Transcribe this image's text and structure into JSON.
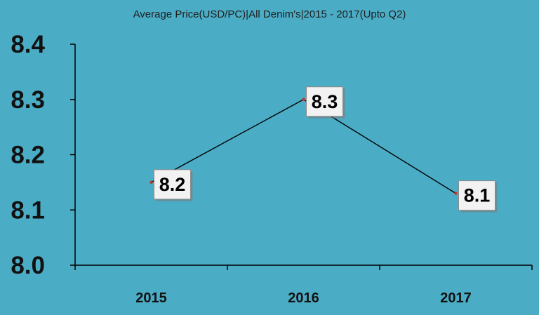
{
  "chart_data": {
    "type": "line",
    "title": "Average Price(USD/PC)|All Denim's|2015 - 2017(Upto Q2)",
    "xlabel": "",
    "ylabel": "",
    "categories": [
      "2015",
      "2016",
      "2017"
    ],
    "values": [
      8.15,
      8.3,
      8.13
    ],
    "data_labels": [
      "8.2",
      "8.3",
      "8.1"
    ],
    "ylim": [
      8.0,
      8.4
    ],
    "yticks": [
      "8.0",
      "8.1",
      "8.2",
      "8.3",
      "8.4"
    ],
    "grid": false,
    "legend": "none",
    "colors": {
      "background": "#4bacc6",
      "line": "#000000",
      "marker": "#c0392b",
      "label_box": "#f2f2f2"
    }
  }
}
